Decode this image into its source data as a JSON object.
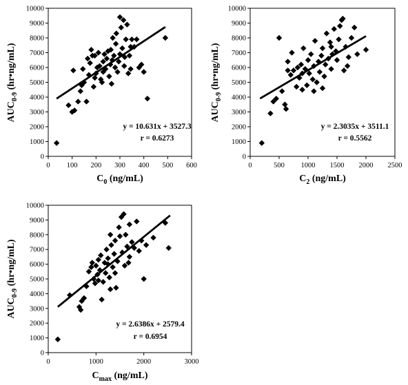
{
  "chart_data": [
    {
      "type": "scatter",
      "xlabel": {
        "main": "C",
        "sub": "0",
        "rest": " (ng/mL)"
      },
      "ylabel": {
        "main": "AUC",
        "sub": "0-9",
        "rest": " (hr•ng/mL)"
      },
      "xlim": [
        0,
        600
      ],
      "ylim": [
        0,
        10000
      ],
      "xticks": [
        0,
        100,
        200,
        300,
        400,
        500,
        600
      ],
      "yticks": [
        0,
        1000,
        2000,
        3000,
        4000,
        5000,
        6000,
        7000,
        8000,
        9000,
        10000
      ],
      "trendline": {
        "slope": 10.631,
        "intercept": 3527.3,
        "x_range": [
          35,
          490
        ]
      },
      "equation_text": "y = 10.631x + 3527.3",
      "r_text": "r = 0.6273",
      "points": [
        [
          35,
          900
        ],
        [
          85,
          3450
        ],
        [
          100,
          3000
        ],
        [
          110,
          3100
        ],
        [
          105,
          5800
        ],
        [
          125,
          3700
        ],
        [
          135,
          4400
        ],
        [
          140,
          4800
        ],
        [
          145,
          5900
        ],
        [
          150,
          5000
        ],
        [
          160,
          3700
        ],
        [
          170,
          5500
        ],
        [
          175,
          6300
        ],
        [
          180,
          7200
        ],
        [
          185,
          6800
        ],
        [
          190,
          4700
        ],
        [
          195,
          5300
        ],
        [
          200,
          5600
        ],
        [
          205,
          6000
        ],
        [
          210,
          7000
        ],
        [
          215,
          6100
        ],
        [
          220,
          5200
        ],
        [
          225,
          5000
        ],
        [
          230,
          6400
        ],
        [
          235,
          6900
        ],
        [
          240,
          5900
        ],
        [
          245,
          6600
        ],
        [
          250,
          7100
        ],
        [
          255,
          5400
        ],
        [
          260,
          6200
        ],
        [
          262,
          7200
        ],
        [
          268,
          6500
        ],
        [
          270,
          8000
        ],
        [
          275,
          6800
        ],
        [
          280,
          6000
        ],
        [
          283,
          7600
        ],
        [
          285,
          8300
        ],
        [
          290,
          5700
        ],
        [
          295,
          6400
        ],
        [
          300,
          9400
        ],
        [
          305,
          8700
        ],
        [
          310,
          7300
        ],
        [
          315,
          9200
        ],
        [
          318,
          6100
        ],
        [
          320,
          6700
        ],
        [
          325,
          7900
        ],
        [
          330,
          8900
        ],
        [
          335,
          5600
        ],
        [
          340,
          6800
        ],
        [
          345,
          7400
        ],
        [
          350,
          7900
        ],
        [
          360,
          7400
        ],
        [
          370,
          7900
        ],
        [
          380,
          6000
        ],
        [
          390,
          6200
        ],
        [
          400,
          5700
        ],
        [
          415,
          3900
        ],
        [
          490,
          8000
        ],
        [
          165,
          6600
        ],
        [
          195,
          6800
        ],
        [
          230,
          5700
        ],
        [
          300,
          6900
        ],
        [
          345,
          5900
        ],
        [
          265,
          4900
        ]
      ]
    },
    {
      "type": "scatter",
      "xlabel": {
        "main": "C",
        "sub": "2",
        "rest": " (ng/mL)"
      },
      "ylabel": {
        "main": "AUC",
        "sub": "0-9",
        "rest": " (hr•ng/mL)"
      },
      "xlim": [
        0,
        2500
      ],
      "ylim": [
        0,
        10000
      ],
      "xticks": [
        0,
        500,
        1000,
        1500,
        2000,
        2500
      ],
      "yticks": [
        0,
        1000,
        2000,
        3000,
        4000,
        5000,
        6000,
        7000,
        8000,
        9000,
        10000
      ],
      "trendline": {
        "slope": 2.3035,
        "intercept": 3511.1,
        "x_range": [
          170,
          2000
        ]
      },
      "equation_text": "y = 2.3035x + 3511.1",
      "r_text": "r = 0.5562",
      "points": [
        [
          200,
          900
        ],
        [
          350,
          2900
        ],
        [
          400,
          3700
        ],
        [
          450,
          3900
        ],
        [
          500,
          8000
        ],
        [
          550,
          4400
        ],
        [
          600,
          3500
        ],
        [
          620,
          3200
        ],
        [
          650,
          6400
        ],
        [
          700,
          5500
        ],
        [
          720,
          7000
        ],
        [
          750,
          5800
        ],
        [
          800,
          4700
        ],
        [
          820,
          6000
        ],
        [
          850,
          5300
        ],
        [
          880,
          6200
        ],
        [
          900,
          4500
        ],
        [
          920,
          7300
        ],
        [
          950,
          5900
        ],
        [
          980,
          4800
        ],
        [
          1000,
          6500
        ],
        [
          1020,
          5600
        ],
        [
          1050,
          6900
        ],
        [
          1080,
          5200
        ],
        [
          1100,
          6100
        ],
        [
          1120,
          7800
        ],
        [
          1150,
          5000
        ],
        [
          1180,
          6400
        ],
        [
          1200,
          5700
        ],
        [
          1230,
          6800
        ],
        [
          1250,
          7300
        ],
        [
          1280,
          5400
        ],
        [
          1300,
          6200
        ],
        [
          1320,
          8300
        ],
        [
          1350,
          6600
        ],
        [
          1380,
          7700
        ],
        [
          1400,
          5900
        ],
        [
          1420,
          6900
        ],
        [
          1450,
          8600
        ],
        [
          1480,
          7100
        ],
        [
          1500,
          6500
        ],
        [
          1530,
          7900
        ],
        [
          1550,
          8800
        ],
        [
          1580,
          9200
        ],
        [
          1600,
          9300
        ],
        [
          1620,
          5800
        ],
        [
          1650,
          7400
        ],
        [
          1680,
          6100
        ],
        [
          1700,
          6700
        ],
        [
          1750,
          8000
        ],
        [
          1800,
          8700
        ],
        [
          1850,
          6900
        ],
        [
          2000,
          7200
        ],
        [
          1100,
          4400
        ],
        [
          1250,
          4600
        ],
        [
          900,
          5600
        ],
        [
          1400,
          7400
        ],
        [
          650,
          5800
        ]
      ]
    },
    {
      "type": "scatter",
      "xlabel": {
        "main": "C",
        "sub": "max",
        "rest": " (ng/mL)"
      },
      "ylabel": {
        "main": "AUC",
        "sub": "0-9",
        "rest": " (hr•ng/mL)"
      },
      "xlim": [
        0,
        3000
      ],
      "ylim": [
        0,
        10000
      ],
      "xticks": [
        0,
        1000,
        2000,
        3000
      ],
      "yticks": [
        0,
        1000,
        2000,
        3000,
        4000,
        5000,
        6000,
        7000,
        8000,
        9000,
        10000
      ],
      "trendline": {
        "slope": 2.6386,
        "intercept": 2579.4,
        "x_range": [
          200,
          2550
        ]
      },
      "equation_text": "y = 2.6386x + 2579.4",
      "r_text": "r = 0.6954",
      "points": [
        [
          200,
          900
        ],
        [
          450,
          3900
        ],
        [
          650,
          3100
        ],
        [
          680,
          2900
        ],
        [
          700,
          3500
        ],
        [
          750,
          3700
        ],
        [
          800,
          4500
        ],
        [
          850,
          5500
        ],
        [
          900,
          5800
        ],
        [
          920,
          6100
        ],
        [
          950,
          5000
        ],
        [
          980,
          4700
        ],
        [
          1000,
          5900
        ],
        [
          1030,
          5300
        ],
        [
          1050,
          6300
        ],
        [
          1080,
          5600
        ],
        [
          1100,
          6600
        ],
        [
          1120,
          3600
        ],
        [
          1150,
          4800
        ],
        [
          1180,
          6100
        ],
        [
          1200,
          5400
        ],
        [
          1220,
          7000
        ],
        [
          1250,
          6400
        ],
        [
          1280,
          5100
        ],
        [
          1300,
          8000
        ],
        [
          1320,
          7300
        ],
        [
          1350,
          5800
        ],
        [
          1380,
          6700
        ],
        [
          1400,
          7600
        ],
        [
          1420,
          4400
        ],
        [
          1450,
          6200
        ],
        [
          1480,
          8500
        ],
        [
          1500,
          7900
        ],
        [
          1530,
          9200
        ],
        [
          1550,
          6800
        ],
        [
          1580,
          9400
        ],
        [
          1600,
          5900
        ],
        [
          1620,
          8000
        ],
        [
          1650,
          7200
        ],
        [
          1680,
          6100
        ],
        [
          1700,
          8700
        ],
        [
          1750,
          7500
        ],
        [
          1800,
          7100
        ],
        [
          1850,
          8900
        ],
        [
          1900,
          6900
        ],
        [
          1950,
          7600
        ],
        [
          2000,
          5000
        ],
        [
          2050,
          7300
        ],
        [
          2200,
          7800
        ],
        [
          2450,
          8800
        ],
        [
          2520,
          7100
        ],
        [
          1250,
          6000
        ],
        [
          1400,
          5400
        ],
        [
          1050,
          4900
        ],
        [
          1700,
          6500
        ],
        [
          1300,
          4300
        ]
      ]
    }
  ]
}
